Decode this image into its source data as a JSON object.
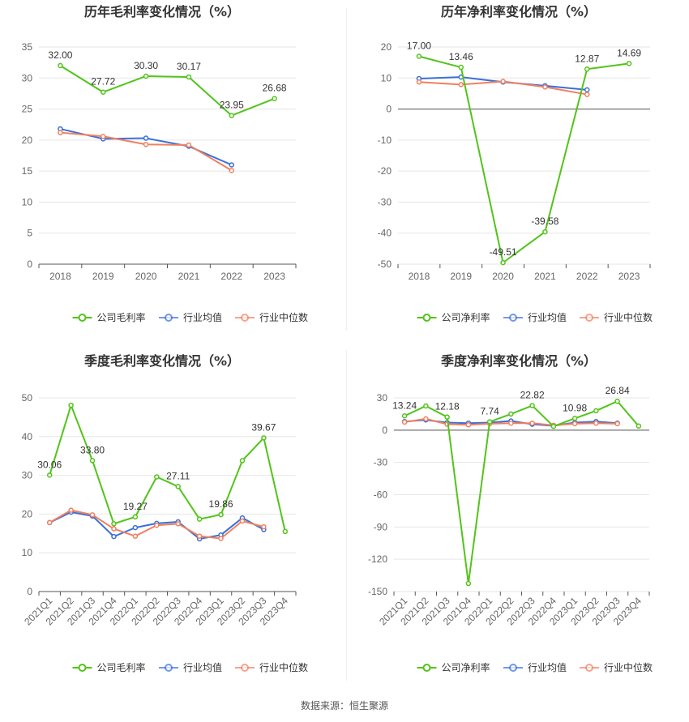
{
  "source": "数据来源：恒生聚源",
  "colors": {
    "company": "#52c41a",
    "avg": "#3a6fd8",
    "median": "#f08060"
  },
  "chart_data": [
    {
      "id": "annual_gross",
      "type": "line",
      "title": "历年毛利率变化情况（%）",
      "categories": [
        "2018",
        "2019",
        "2020",
        "2021",
        "2022",
        "2023"
      ],
      "ylim": [
        0,
        35
      ],
      "yticks": [
        0,
        5,
        10,
        15,
        20,
        25,
        30,
        35
      ],
      "rotate_x": false,
      "series": [
        {
          "name": "公司毛利率",
          "key": "company",
          "values": [
            32.0,
            27.72,
            30.3,
            30.17,
            23.95,
            26.68
          ],
          "labels": [
            "32.00",
            "27.72",
            "30.30",
            "30.17",
            "23.95",
            "26.68"
          ]
        },
        {
          "name": "行业均值",
          "key": "avg",
          "values": [
            21.8,
            20.2,
            20.3,
            19.0,
            16.0,
            null
          ]
        },
        {
          "name": "行业中位数",
          "key": "median",
          "values": [
            21.2,
            20.6,
            19.3,
            19.2,
            15.1,
            null
          ]
        }
      ]
    },
    {
      "id": "annual_net",
      "type": "line",
      "title": "历年净利率变化情况（%）",
      "categories": [
        "2018",
        "2019",
        "2020",
        "2021",
        "2022",
        "2023"
      ],
      "ylim": [
        -50,
        20
      ],
      "yticks": [
        -50,
        -40,
        -30,
        -20,
        -10,
        0,
        10,
        20
      ],
      "rotate_x": false,
      "series": [
        {
          "name": "公司净利率",
          "key": "company",
          "values": [
            17.0,
            13.46,
            -49.51,
            -39.58,
            12.87,
            14.69
          ],
          "labels": [
            "17.00",
            "13.46",
            "-49.51",
            "-39.58",
            "12.87",
            "14.69"
          ]
        },
        {
          "name": "行业均值",
          "key": "avg",
          "values": [
            9.8,
            10.3,
            8.7,
            7.5,
            6.2,
            null
          ]
        },
        {
          "name": "行业中位数",
          "key": "median",
          "values": [
            8.7,
            7.9,
            8.9,
            7.1,
            4.7,
            null
          ]
        }
      ]
    },
    {
      "id": "quarterly_gross",
      "type": "line",
      "title": "季度毛利率变化情况（%）",
      "categories": [
        "2021Q1",
        "2021Q2",
        "2021Q3",
        "2021Q4",
        "2022Q1",
        "2022Q2",
        "2022Q3",
        "2022Q4",
        "2023Q1",
        "2023Q2",
        "2023Q3",
        "2023Q4"
      ],
      "ylim": [
        0,
        50
      ],
      "yticks": [
        0,
        10,
        20,
        30,
        40,
        50
      ],
      "rotate_x": true,
      "series": [
        {
          "name": "公司毛利率",
          "key": "company",
          "values": [
            30.06,
            48.1,
            33.8,
            17.5,
            19.27,
            29.6,
            27.11,
            18.7,
            19.86,
            33.8,
            39.67,
            15.5
          ],
          "labels": [
            "30.06",
            "",
            "33.80",
            "",
            "19.27",
            "",
            "27.11",
            "",
            "19.86",
            "",
            "39.67",
            ""
          ]
        },
        {
          "name": "行业均值",
          "key": "avg",
          "values": [
            17.8,
            20.5,
            19.5,
            14.2,
            16.5,
            17.6,
            18.0,
            13.6,
            14.6,
            19.0,
            16.0,
            null
          ]
        },
        {
          "name": "行业中位数",
          "key": "median",
          "values": [
            17.8,
            21.0,
            19.8,
            16.2,
            14.3,
            17.1,
            17.5,
            14.3,
            13.7,
            18.2,
            16.7,
            null
          ]
        }
      ]
    },
    {
      "id": "quarterly_net",
      "type": "line",
      "title": "季度净利率变化情况（%）",
      "categories": [
        "2021Q1",
        "2021Q2",
        "2021Q3",
        "2021Q4",
        "2022Q1",
        "2022Q2",
        "2022Q3",
        "2022Q4",
        "2023Q1",
        "2023Q2",
        "2023Q3",
        "2023Q4"
      ],
      "ylim": [
        -150,
        30
      ],
      "yticks": [
        -150,
        -120,
        -90,
        -60,
        -30,
        0,
        30
      ],
      "rotate_x": true,
      "series": [
        {
          "name": "公司净利率",
          "key": "company",
          "values": [
            13.24,
            22.5,
            12.18,
            -142.5,
            7.74,
            15.0,
            22.82,
            3.5,
            10.98,
            18.0,
            26.84,
            3.8
          ],
          "labels": [
            "13.24",
            "",
            "12.18",
            "",
            "7.74",
            "",
            "22.82",
            "",
            "10.98",
            "",
            "26.84",
            ""
          ]
        },
        {
          "name": "行业均值",
          "key": "avg",
          "values": [
            8.0,
            9.5,
            7.0,
            6.5,
            7.0,
            8.5,
            5.5,
            4.0,
            7.0,
            8.0,
            6.5,
            null
          ]
        },
        {
          "name": "行业中位数",
          "key": "median",
          "values": [
            7.5,
            10.5,
            5.5,
            5.0,
            6.0,
            6.5,
            6.5,
            4.5,
            6.0,
            6.5,
            6.0,
            null
          ]
        }
      ]
    }
  ]
}
